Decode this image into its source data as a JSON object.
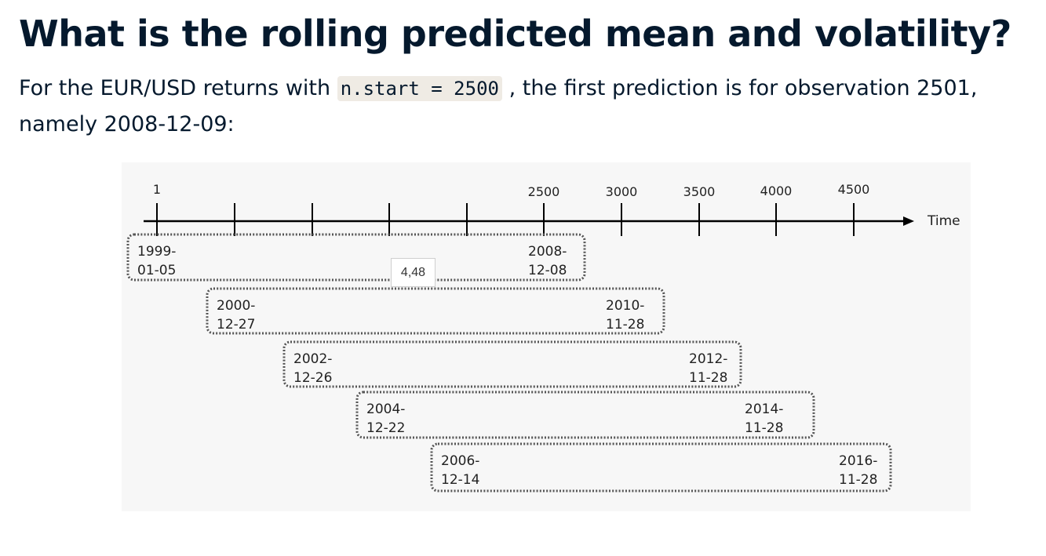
{
  "title": "What is the rolling predicted mean and volatility?",
  "paragraph": {
    "before": "For the EUR/USD returns with ",
    "code": "n.start = 2500",
    "after": " , the first prediction is for observation 2501, namely 2008-12-09:"
  },
  "diagram": {
    "axis_label": "Time",
    "tick_labels": [
      "1",
      "",
      "",
      "",
      "",
      "2500",
      "3000",
      "3500",
      "4000",
      "4500"
    ],
    "windows": [
      {
        "start_top": "1999-",
        "start_bottom": "01-05",
        "end_top": "2008-",
        "end_bottom": "12-08"
      },
      {
        "start_top": "2000-",
        "start_bottom": "12-27",
        "end_top": "2010-",
        "end_bottom": "11-28"
      },
      {
        "start_top": "2002-",
        "start_bottom": "12-26",
        "end_top": "2012-",
        "end_bottom": "11-28"
      },
      {
        "start_top": "2004-",
        "start_bottom": "12-22",
        "end_top": "2014-",
        "end_bottom": "11-28"
      },
      {
        "start_top": "2006-",
        "start_bottom": "12-14",
        "end_top": "2016-",
        "end_bottom": "11-28"
      }
    ],
    "overlay_label": "4,48"
  }
}
